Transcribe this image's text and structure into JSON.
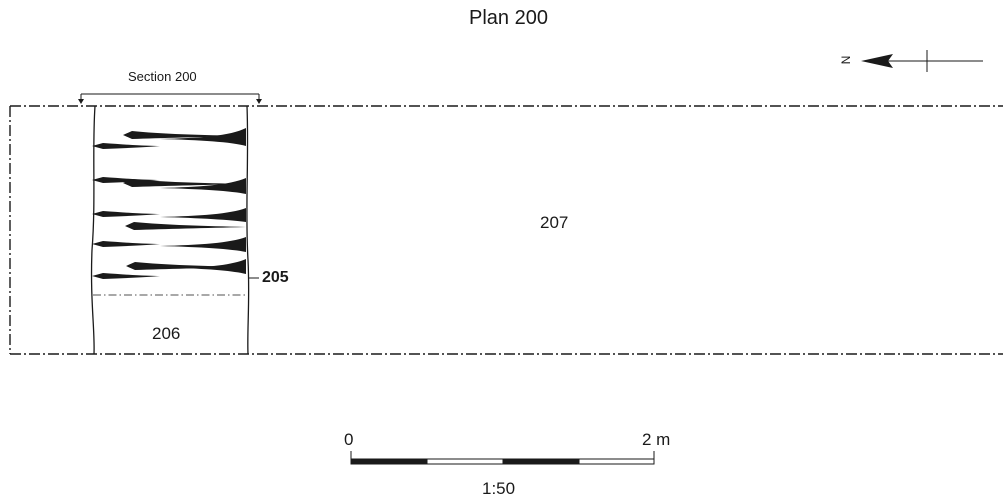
{
  "title": "Plan 200",
  "section_label": "Section 200",
  "north_label": "N",
  "contexts": {
    "cut": "205",
    "fill": "206",
    "layer": "207"
  },
  "scale": {
    "start": "0",
    "end": "2 m",
    "ratio": "1:50"
  }
}
